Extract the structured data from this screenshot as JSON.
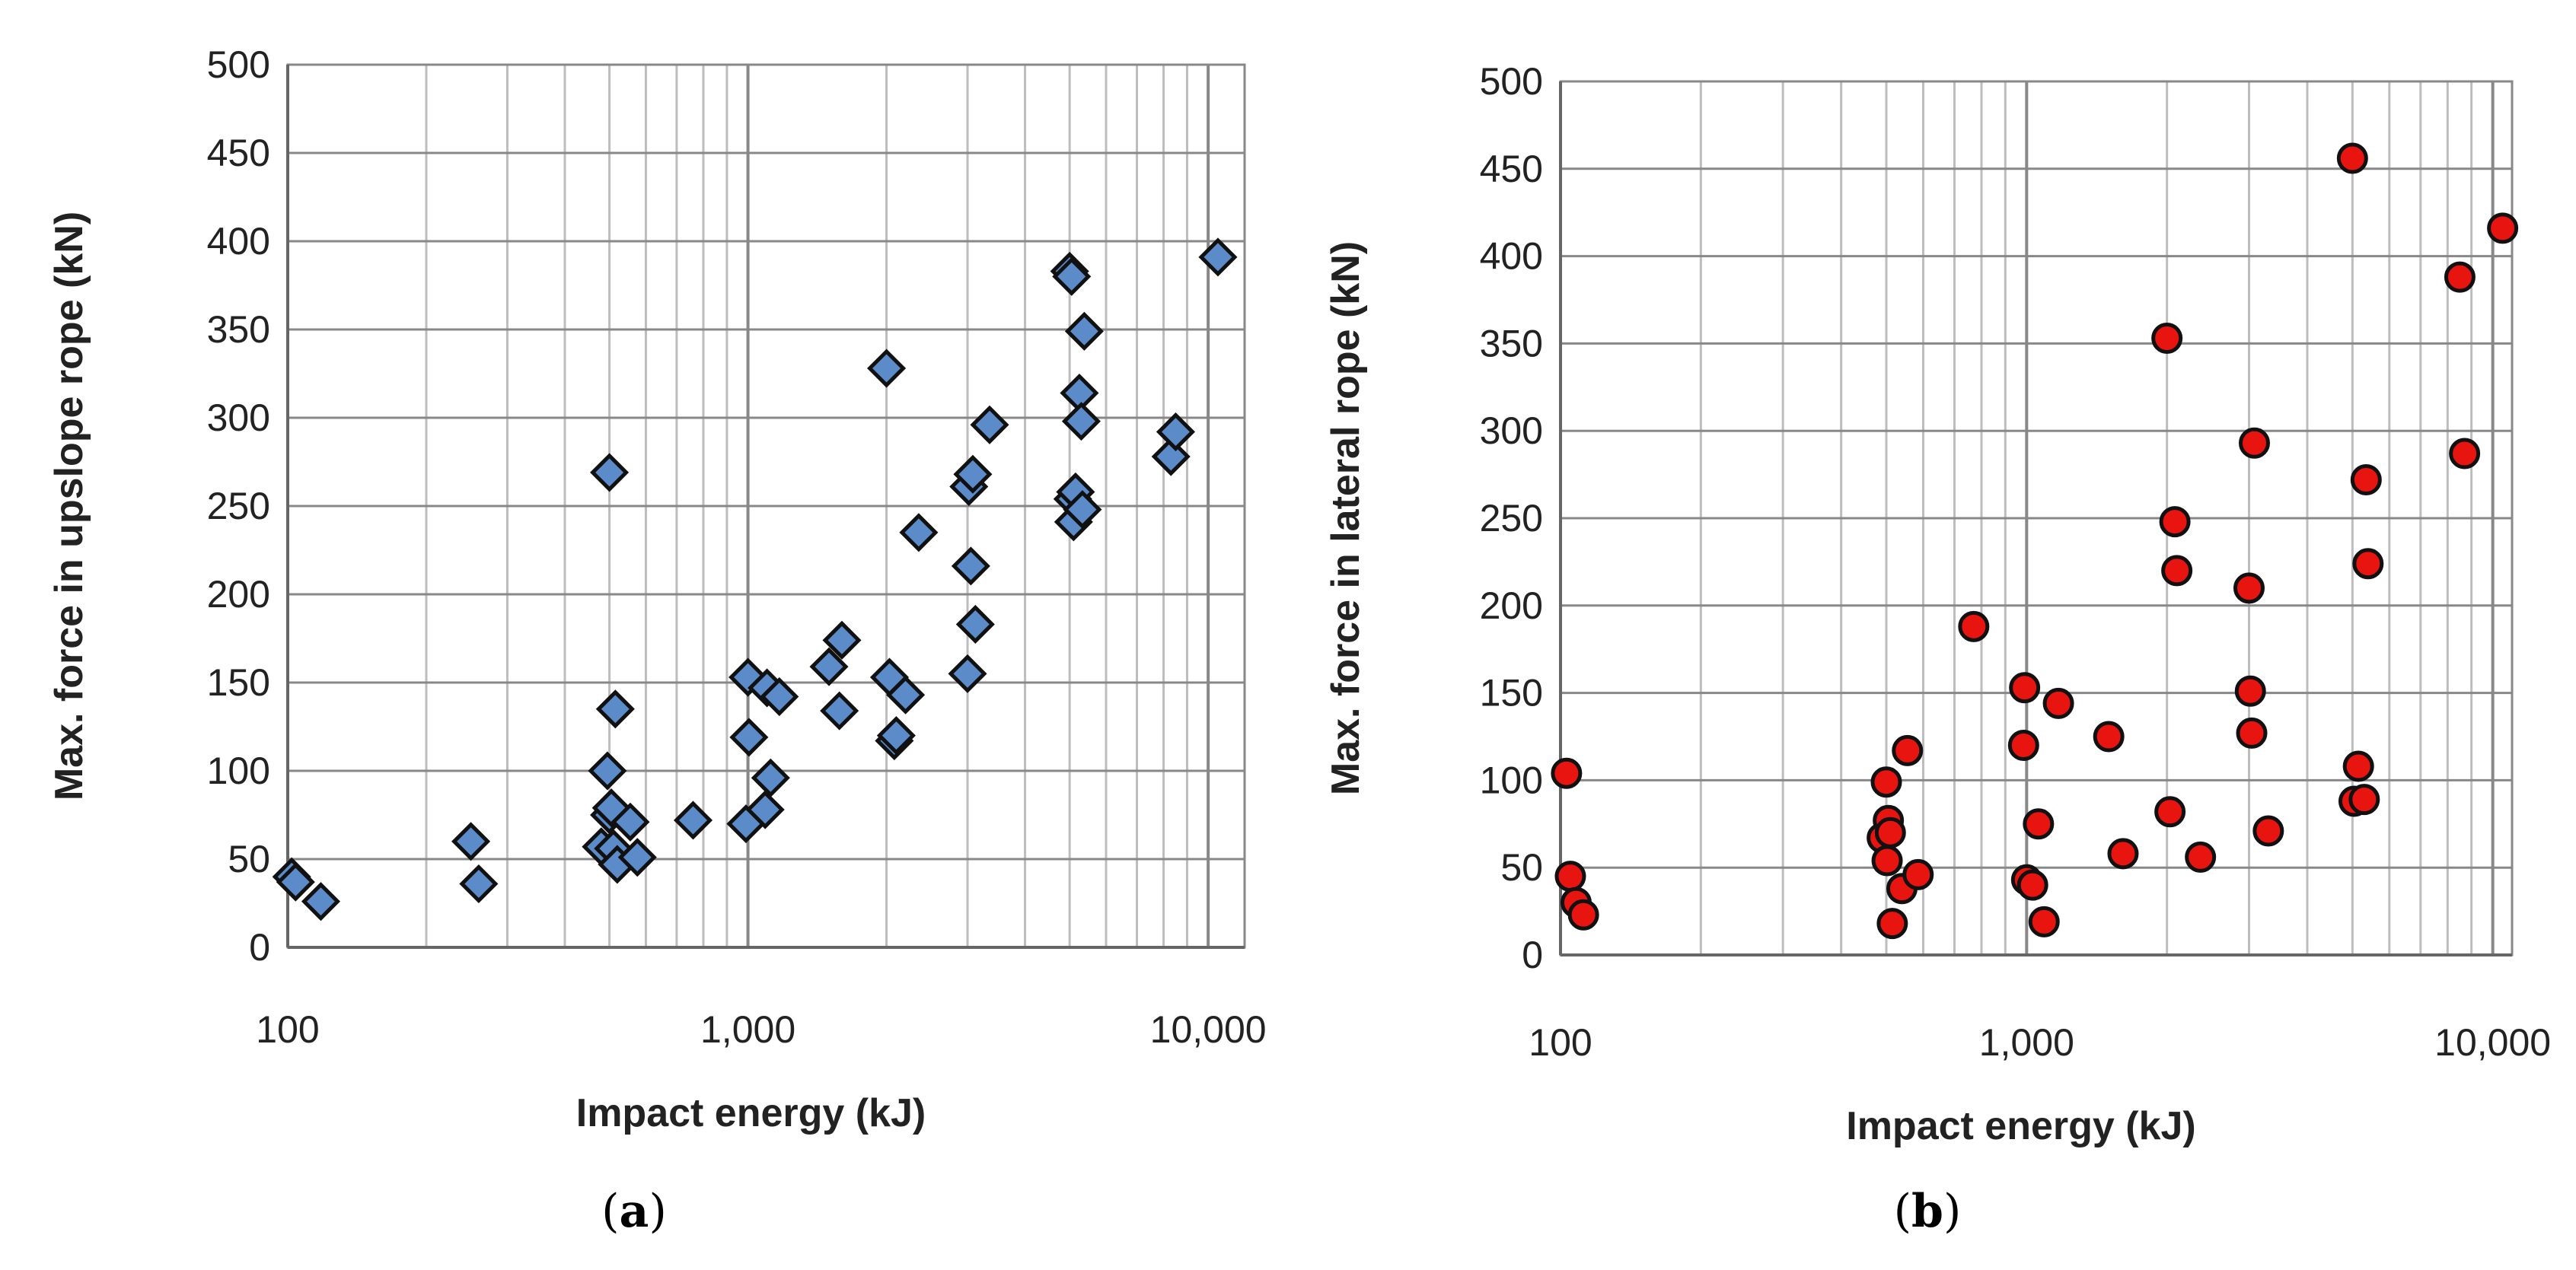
{
  "colors": {
    "panel_a_marker": "#5b8bc9",
    "panel_b_marker": "#e8140f",
    "marker_edge": "#111111",
    "grid": "#bdbdbd",
    "major_grid": "#888888"
  },
  "chart_data": [
    {
      "type": "scatter",
      "panel": "a",
      "caption_letter": "a",
      "title": "",
      "xlabel": "Impact energy (kJ)",
      "ylabel": "Max. force in upslope rope (kN)",
      "xscale": "log",
      "xlim": [
        100,
        12000
      ],
      "ylim": [
        0,
        500
      ],
      "xticks": [
        100,
        1000,
        10000
      ],
      "xtick_labels": [
        "100",
        "1,000",
        "10,000"
      ],
      "yticks": [
        0,
        50,
        100,
        150,
        200,
        250,
        300,
        350,
        400,
        450,
        500
      ],
      "ytick_labels": [
        "0",
        "50",
        "100",
        "150",
        "200",
        "250",
        "300",
        "350",
        "400",
        "450",
        "500"
      ],
      "grid": true,
      "marker": "diamond",
      "points": [
        [
          102,
          40
        ],
        [
          104,
          37
        ],
        [
          118,
          26
        ],
        [
          250,
          60
        ],
        [
          260,
          36
        ],
        [
          480,
          57
        ],
        [
          495,
          100
        ],
        [
          500,
          269
        ],
        [
          500,
          75
        ],
        [
          505,
          79
        ],
        [
          510,
          56
        ],
        [
          515,
          135
        ],
        [
          520,
          47
        ],
        [
          555,
          71
        ],
        [
          575,
          51
        ],
        [
          760,
          72
        ],
        [
          990,
          70
        ],
        [
          1000,
          153
        ],
        [
          1005,
          119
        ],
        [
          1090,
          78
        ],
        [
          1100,
          147
        ],
        [
          1120,
          96
        ],
        [
          1170,
          142
        ],
        [
          1500,
          159
        ],
        [
          1580,
          134
        ],
        [
          1600,
          174
        ],
        [
          2000,
          328
        ],
        [
          2030,
          153
        ],
        [
          2080,
          117
        ],
        [
          2100,
          120
        ],
        [
          2200,
          143
        ],
        [
          2350,
          235
        ],
        [
          3000,
          155
        ],
        [
          3020,
          261
        ],
        [
          3050,
          216
        ],
        [
          3080,
          268
        ],
        [
          3120,
          183
        ],
        [
          3350,
          296
        ],
        [
          5000,
          383
        ],
        [
          5050,
          380
        ],
        [
          5080,
          254
        ],
        [
          5100,
          241
        ],
        [
          5150,
          258
        ],
        [
          5250,
          314
        ],
        [
          5300,
          298
        ],
        [
          5330,
          248
        ],
        [
          5380,
          349
        ],
        [
          8300,
          278
        ],
        [
          8500,
          292
        ],
        [
          10500,
          391
        ]
      ]
    },
    {
      "type": "scatter",
      "panel": "b",
      "caption_letter": "b",
      "title": "",
      "xlabel": "Impact energy (kJ)",
      "ylabel": "Max. force in lateral rope (kN)",
      "xscale": "log",
      "xlim": [
        100,
        11000
      ],
      "ylim": [
        0,
        500
      ],
      "xticks": [
        100,
        1000,
        10000
      ],
      "xtick_labels": [
        "100",
        "1,000",
        "10,000"
      ],
      "yticks": [
        0,
        50,
        100,
        150,
        200,
        250,
        300,
        350,
        400,
        450,
        500
      ],
      "ytick_labels": [
        "0",
        "50",
        "100",
        "150",
        "200",
        "250",
        "300",
        "350",
        "400",
        "450",
        "500"
      ],
      "grid": true,
      "marker": "circle",
      "points": [
        [
          103,
          104
        ],
        [
          105,
          45
        ],
        [
          108,
          30
        ],
        [
          112,
          23
        ],
        [
          490,
          67
        ],
        [
          500,
          99
        ],
        [
          502,
          54
        ],
        [
          505,
          77
        ],
        [
          510,
          70
        ],
        [
          515,
          18
        ],
        [
          540,
          38
        ],
        [
          555,
          117
        ],
        [
          585,
          46
        ],
        [
          770,
          188
        ],
        [
          990,
          153
        ],
        [
          985,
          120
        ],
        [
          1000,
          43
        ],
        [
          1030,
          40
        ],
        [
          1060,
          75
        ],
        [
          1090,
          19
        ],
        [
          1170,
          144
        ],
        [
          1500,
          125
        ],
        [
          1610,
          58
        ],
        [
          2000,
          353
        ],
        [
          2030,
          82
        ],
        [
          2080,
          248
        ],
        [
          2100,
          220
        ],
        [
          2360,
          56
        ],
        [
          3000,
          210
        ],
        [
          3020,
          151
        ],
        [
          3040,
          127
        ],
        [
          3080,
          293
        ],
        [
          3300,
          71
        ],
        [
          5000,
          456
        ],
        [
          5040,
          88
        ],
        [
          5150,
          108
        ],
        [
          5300,
          89
        ],
        [
          5350,
          272
        ],
        [
          5400,
          224
        ],
        [
          8500,
          388
        ],
        [
          8700,
          287
        ],
        [
          10500,
          416
        ]
      ]
    }
  ]
}
